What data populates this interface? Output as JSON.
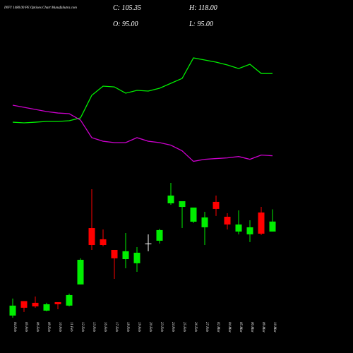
{
  "chart_data": {
    "type": "candlestick",
    "title": "INFY 1480.00 PE Options Chart MunafaSutra.com",
    "ohlc_labels": {
      "close": "C: 105.35",
      "high": "H: 118.00",
      "open": "O: 95.00",
      "low": "L: 95.00"
    },
    "categories": [
      "04 Feb",
      "05 Feb",
      "06 Feb",
      "09 Feb",
      "10 Feb",
      "11 Feb",
      "12 Feb",
      "13 Feb",
      "16 Feb",
      "17 Feb",
      "18 Feb",
      "19 Feb",
      "20 Feb",
      "23 Feb",
      "24 Feb",
      "25 Feb",
      "26 Feb",
      "27 Feb",
      "02 Mar",
      "04 Mar",
      "05 Mar",
      "06 Mar",
      "09 Mar",
      "10 Mar"
    ],
    "open": [
      8.1,
      23.1,
      21.3,
      13.2,
      22.0,
      18.4,
      40.3,
      98.6,
      87.0,
      76.0,
      66.5,
      62.2,
      82.6,
      85.5,
      124.2,
      120.5,
      105.2,
      99.4,
      125.7,
      110.3,
      95.0,
      92.1,
      114.7,
      95.0
    ],
    "high": [
      25.7,
      23.1,
      27.8,
      21.3,
      22.0,
      30.8,
      67.3,
      138.8,
      97.2,
      76.0,
      93.5,
      78.9,
      92.1,
      97.9,
      145.4,
      126.4,
      119.8,
      115.4,
      132.2,
      114.0,
      116.9,
      106.7,
      120.5,
      118.0
    ],
    "low": [
      5.9,
      11.8,
      16.2,
      12.5,
      14.7,
      17.6,
      40.3,
      76.0,
      79.7,
      46.1,
      57.0,
      53.4,
      74.6,
      82.6,
      122.7,
      98.6,
      103.8,
      81.1,
      111.1,
      97.2,
      92.1,
      84.1,
      91.4,
      95.0
    ],
    "close": [
      18.4,
      16.2,
      17.6,
      19.8,
      19.8,
      29.3,
      65.8,
      81.1,
      81.1,
      67.3,
      74.6,
      73.1,
      82.6,
      96.5,
      132.2,
      126.4,
      119.8,
      109.6,
      118.4,
      102.3,
      102.3,
      99.4,
      92.8,
      105.35
    ],
    "up_color": "#00ee00",
    "down_color": "#ff0000",
    "flat_color": "#ffffff",
    "series": [
      {
        "color": "#00ee00",
        "values": [
          208.1,
          207.4,
          208.1,
          208.9,
          208.9,
          209.6,
          212.5,
          235.9,
          245.4,
          244.6,
          238.1,
          241.0,
          240.3,
          243.2,
          248.3,
          253.4,
          274.6,
          272.4,
          270.2,
          267.3,
          263.6,
          268.0,
          258.5,
          258.5
        ]
      },
      {
        "color": "#cc00cc",
        "values": [
          225.7,
          223.5,
          221.3,
          219.1,
          217.6,
          216.9,
          210.3,
          192.1,
          188.4,
          187.0,
          187.0,
          192.1,
          188.4,
          187.0,
          184.3,
          178.5,
          167.6,
          169.7,
          170.5,
          171.2,
          172.6,
          169.7,
          174.1,
          173.4
        ]
      }
    ]
  }
}
